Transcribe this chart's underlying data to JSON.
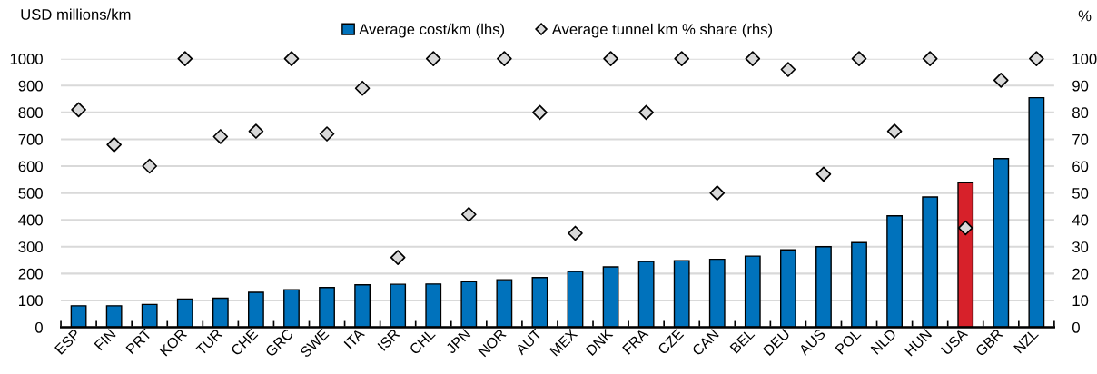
{
  "chart_data": {
    "type": "bar",
    "categories": [
      "ESP",
      "FIN",
      "PRT",
      "KOR",
      "TUR",
      "CHE",
      "GRC",
      "SWE",
      "ITA",
      "ISR",
      "CHL",
      "JPN",
      "NOR",
      "AUT",
      "MEX",
      "DNK",
      "FRA",
      "CZE",
      "CAN",
      "BEL",
      "DEU",
      "AUS",
      "POL",
      "NLD",
      "HUN",
      "USA",
      "GBR",
      "NZL"
    ],
    "series": [
      {
        "name": "Average cost/km (lhs)",
        "color": "#0072bc",
        "colors": [
          "#0072bc",
          "#0072bc",
          "#0072bc",
          "#0072bc",
          "#0072bc",
          "#0072bc",
          "#0072bc",
          "#0072bc",
          "#0072bc",
          "#0072bc",
          "#0072bc",
          "#0072bc",
          "#0072bc",
          "#0072bc",
          "#0072bc",
          "#0072bc",
          "#0072bc",
          "#0072bc",
          "#0072bc",
          "#0072bc",
          "#0072bc",
          "#0072bc",
          "#0072bc",
          "#0072bc",
          "#0072bc",
          "#d7212a",
          "#0072bc",
          "#0072bc"
        ],
        "values": [
          80,
          80,
          85,
          105,
          108,
          130,
          140,
          148,
          158,
          160,
          161,
          170,
          177,
          185,
          208,
          225,
          245,
          248,
          253,
          265,
          288,
          300,
          315,
          415,
          485,
          538,
          628,
          855
        ]
      },
      {
        "name": "Average tunnel km % share (rhs)",
        "type": "scatter",
        "axis": "y2",
        "marker": "diamond",
        "color": "#d9d9d9",
        "values": [
          81,
          68,
          60,
          100,
          71,
          73,
          100,
          72,
          89,
          26,
          100,
          42,
          100,
          80,
          35,
          100,
          80,
          100,
          50,
          100,
          96,
          57,
          100,
          73,
          100,
          37,
          92,
          100
        ]
      }
    ],
    "ylabel": "USD millions/km",
    "y2label": "%",
    "ylim": [
      0,
      1000
    ],
    "yticks": [
      0,
      100,
      200,
      300,
      400,
      500,
      600,
      700,
      800,
      900,
      1000
    ],
    "y2lim": [
      0,
      100
    ],
    "y2ticks": [
      0,
      10,
      20,
      30,
      40,
      50,
      60,
      70,
      80,
      90,
      100
    ],
    "grid": "y",
    "legend": "top"
  }
}
